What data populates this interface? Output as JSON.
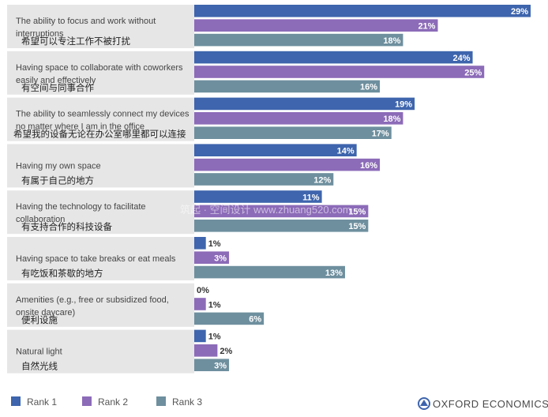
{
  "chart_data": {
    "type": "bar",
    "orientation": "horizontal",
    "title": "",
    "xlabel": "",
    "ylabel": "",
    "xlim": [
      0,
      29
    ],
    "value_suffix": "%",
    "categories": [
      {
        "en": "The ability to focus and work without interruptions",
        "zh": "希望可以专注工作不被打扰"
      },
      {
        "en": "Having space to collaborate with coworkers easily and effectively",
        "zh": "有空间与同事合作"
      },
      {
        "en": "The ability to seamlessly connect my devices no matter where I am in the office",
        "zh": "希望我的设备无论在办公室哪里都可以连接"
      },
      {
        "en": "Having my own space",
        "zh": "有属于自己的地方"
      },
      {
        "en": "Having the technology to facilitate collaboration",
        "zh": "有支持合作的科技设备"
      },
      {
        "en": "Having space to take breaks or eat meals",
        "zh": "有吃饭和茶歇的地方"
      },
      {
        "en": "Amenities (e.g., free or subsidized food, onsite daycare)",
        "zh": "便利设施"
      },
      {
        "en": "Natural light",
        "zh": "自然光线"
      }
    ],
    "series": [
      {
        "name": "Rank 1",
        "color": "#3e65ad",
        "values": [
          29,
          24,
          19,
          14,
          11,
          1,
          0,
          1
        ]
      },
      {
        "name": "Rank 2",
        "color": "#8c6bb8",
        "values": [
          21,
          25,
          18,
          16,
          15,
          3,
          1,
          2
        ]
      },
      {
        "name": "Rank 3",
        "color": "#6e8f9e",
        "values": [
          18,
          16,
          17,
          12,
          15,
          13,
          6,
          3
        ]
      }
    ],
    "legend_position": "bottom-left"
  },
  "brand": {
    "name": "OXFORD ECONOMICS",
    "color": "#3e65ad"
  },
  "watermark": "筑起 · 空间设计  www.zhuang520.com",
  "colors": {
    "band": "#e6e6e6"
  }
}
